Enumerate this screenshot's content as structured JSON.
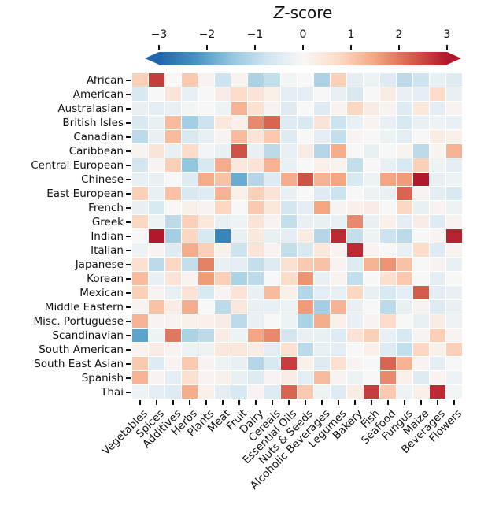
{
  "title": {
    "italic_part": "Z",
    "rest_part": "-score"
  },
  "colorbar": {
    "tick_labels": [
      "−3",
      "−2",
      "−1",
      "0",
      "1",
      "2",
      "3"
    ],
    "tick_values": [
      -3,
      -2,
      -1,
      0,
      1,
      2,
      3
    ],
    "min": -3,
    "max": 3,
    "left_arrow_color": "#2166ac",
    "right_arrow_color": "#b2182b"
  },
  "chart_data": {
    "type": "heatmap",
    "title": "Z-score",
    "colormap": {
      "name": "RdBu_r",
      "stops": [
        {
          "t": -3.0,
          "c": "#2166ac"
        },
        {
          "t": -2.25,
          "c": "#4393c3"
        },
        {
          "t": -1.5,
          "c": "#92c5de"
        },
        {
          "t": -0.75,
          "c": "#d1e5f0"
        },
        {
          "t": 0.0,
          "c": "#f7f7f7"
        },
        {
          "t": 0.75,
          "c": "#fddbc7"
        },
        {
          "t": 1.5,
          "c": "#f4a582"
        },
        {
          "t": 2.25,
          "c": "#d6604d"
        },
        {
          "t": 3.0,
          "c": "#b2182b"
        }
      ]
    },
    "vlim": [
      -3,
      3
    ],
    "colorbar_ticks": [
      -3,
      -2,
      -1,
      0,
      1,
      2,
      3
    ],
    "rows": [
      "African",
      "American",
      "Australasian",
      "British Isles",
      "Canadian",
      "Caribbean",
      "Central European",
      "Chinese",
      "East European",
      "French",
      "Greek",
      "Indian",
      "Italian",
      "Japanese",
      "Korean",
      "Mexican",
      "Middle Eastern",
      "Misc. Portuguese",
      "Scandinavian",
      "South American",
      "South East Asian",
      "Spanish",
      "Thai"
    ],
    "columns": [
      "Vegetables",
      "Spices",
      "Additives",
      "Herbs",
      "Plants",
      "Meat",
      "Fruit",
      "Dairy",
      "Cereals",
      "Essential Oils",
      "Nuts & Seeds",
      "Alcoholic Beverages",
      "Legumes",
      "Bakery",
      "Fish",
      "Seafood",
      "Fungus",
      "Maize",
      "Beverages",
      "Flowers"
    ],
    "values": [
      [
        0.9,
        2.6,
        0.0,
        1.0,
        0.1,
        -0.8,
        0.1,
        -1.2,
        -0.9,
        -0.1,
        0.0,
        -1.2,
        0.9,
        -0.4,
        -0.2,
        -0.5,
        -1.0,
        -0.8,
        -0.3,
        -0.5
      ],
      [
        -0.6,
        0.0,
        0.5,
        -0.3,
        0.0,
        0.3,
        0.7,
        0.5,
        0.2,
        -0.4,
        -0.4,
        0.0,
        -0.3,
        -0.6,
        0.0,
        0.3,
        -0.3,
        -0.4,
        0.7,
        -0.3
      ],
      [
        -0.3,
        -0.4,
        -0.3,
        -0.1,
        0.0,
        -0.2,
        1.3,
        0.6,
        0.1,
        -0.5,
        0.0,
        -0.5,
        0.1,
        0.8,
        0.3,
        0.1,
        -0.5,
        0.4,
        -0.4,
        0.1
      ],
      [
        -0.6,
        -0.3,
        1.2,
        -1.3,
        -0.8,
        0.4,
        0.2,
        1.8,
        2.2,
        -0.5,
        -0.6,
        0.5,
        -0.8,
        -0.3,
        0.1,
        -0.3,
        -0.6,
        -0.3,
        -0.2,
        -0.3
      ],
      [
        -1.0,
        -0.3,
        1.2,
        -0.6,
        -0.3,
        0.1,
        1.2,
        0.5,
        1.0,
        -0.5,
        0.0,
        -0.4,
        -0.9,
        0.1,
        0.0,
        -0.2,
        -0.4,
        0.0,
        0.3,
        0.2
      ],
      [
        0.1,
        0.5,
        -0.3,
        0.7,
        -0.1,
        -0.3,
        2.4,
        -0.3,
        -1.0,
        -0.3,
        0.3,
        -1.1,
        1.4,
        0.0,
        -0.3,
        0.0,
        0.1,
        -1.0,
        0.1,
        1.3
      ],
      [
        -0.7,
        0.1,
        0.9,
        -1.5,
        -0.6,
        1.4,
        0.4,
        0.5,
        1.3,
        -0.3,
        0.0,
        0.2,
        0.1,
        -0.9,
        0.0,
        -0.3,
        -0.6,
        0.9,
        -0.2,
        -0.4
      ],
      [
        -0.3,
        -0.3,
        0.0,
        -0.5,
        1.4,
        1.1,
        -1.9,
        -1.1,
        -0.5,
        1.4,
        2.4,
        1.3,
        1.5,
        -0.6,
        -0.2,
        1.5,
        1.6,
        3.0,
        -0.3,
        -0.2
      ],
      [
        0.9,
        -0.3,
        1.1,
        -0.6,
        -0.5,
        1.3,
        0.2,
        0.9,
        0.5,
        -0.3,
        0.0,
        -0.5,
        -0.8,
        0.0,
        -0.2,
        -0.3,
        2.2,
        0.1,
        -0.4,
        -0.6
      ],
      [
        -0.3,
        -0.6,
        0.0,
        0.2,
        0.1,
        0.8,
        0.0,
        1.0,
        0.4,
        -0.7,
        -0.4,
        1.5,
        0.1,
        0.2,
        0.3,
        0.0,
        0.8,
        -0.3,
        0.1,
        -0.2
      ],
      [
        0.8,
        -0.2,
        -1.0,
        0.9,
        0.4,
        -0.3,
        -0.2,
        0.5,
        0.1,
        -0.9,
        -0.3,
        -0.3,
        -0.3,
        1.8,
        -0.3,
        0.2,
        -0.4,
        0.3,
        -0.5,
        0.1
      ],
      [
        0.0,
        3.0,
        -1.3,
        0.8,
        -0.6,
        -2.5,
        -0.3,
        0.4,
        -0.3,
        -0.4,
        0.3,
        -1.1,
        2.8,
        -0.9,
        -0.2,
        -0.8,
        -1.0,
        0.0,
        0.1,
        2.9
      ],
      [
        -0.2,
        0.1,
        -0.5,
        1.4,
        0.9,
        0.2,
        -0.8,
        0.5,
        0.1,
        -0.9,
        -0.6,
        0.4,
        0.1,
        2.8,
        0.1,
        0.0,
        -0.3,
        0.7,
        -0.5,
        0.1
      ],
      [
        0.6,
        -1.0,
        0.8,
        -0.9,
        1.9,
        -0.3,
        -0.4,
        -0.9,
        -0.5,
        0.6,
        1.0,
        1.1,
        0.1,
        -0.5,
        1.3,
        1.7,
        1.1,
        0.0,
        0.1,
        -0.3
      ],
      [
        1.2,
        -0.3,
        0.5,
        0.1,
        1.6,
        0.9,
        -1.2,
        -1.0,
        0.0,
        0.7,
        1.7,
        -0.3,
        0.1,
        -0.9,
        0.0,
        0.6,
        1.0,
        0.0,
        -0.4,
        0.0
      ],
      [
        0.9,
        0.1,
        -0.3,
        0.5,
        -0.6,
        0.1,
        0.5,
        -0.3,
        1.2,
        0.2,
        -1.1,
        -0.4,
        -0.3,
        0.8,
        -0.3,
        -0.6,
        -0.4,
        2.3,
        -0.4,
        -0.3
      ],
      [
        0.1,
        1.1,
        0.3,
        1.4,
        0.0,
        -1.0,
        0.4,
        -0.3,
        -0.3,
        -0.2,
        1.6,
        -1.3,
        1.3,
        -0.3,
        0.0,
        -1.0,
        -0.3,
        0.1,
        -0.5,
        -0.3
      ],
      [
        1.3,
        0.1,
        0.1,
        0.2,
        0.2,
        0.3,
        -1.0,
        -0.3,
        0.0,
        -0.2,
        -1.2,
        1.4,
        0.2,
        -0.3,
        0.1,
        0.7,
        0.0,
        -0.3,
        0.3,
        -0.2
      ],
      [
        -2.0,
        -0.2,
        2.0,
        -1.2,
        -1.0,
        0.3,
        -0.2,
        1.5,
        1.8,
        -0.7,
        -0.3,
        -0.3,
        -0.5,
        0.5,
        0.9,
        -0.3,
        -0.6,
        0.1,
        0.9,
        0.1
      ],
      [
        0.1,
        0.3,
        0.1,
        -0.2,
        -0.2,
        0.4,
        0.4,
        0.3,
        -0.4,
        0.6,
        -1.0,
        -0.3,
        -0.4,
        0.0,
        0.2,
        -0.5,
        -0.9,
        0.8,
        0.2,
        0.9
      ],
      [
        1.0,
        -0.5,
        0.1,
        1.0,
        0.1,
        -0.2,
        -0.3,
        -1.1,
        -0.6,
        2.6,
        0.2,
        -0.5,
        0.6,
        0.1,
        0.0,
        2.2,
        1.3,
        0.1,
        -0.4,
        0.0
      ],
      [
        1.3,
        0.1,
        -0.4,
        0.6,
        0.1,
        0.2,
        -0.3,
        -0.5,
        0.1,
        0.3,
        -0.4,
        1.2,
        0.1,
        -0.2,
        0.0,
        1.8,
        0.2,
        -0.5,
        0.1,
        -0.2
      ],
      [
        -0.2,
        -0.4,
        -0.5,
        1.4,
        0.2,
        -0.4,
        -0.6,
        0.1,
        -0.5,
        2.2,
        1.0,
        -0.2,
        -0.5,
        0.3,
        2.6,
        1.0,
        -0.2,
        0.2,
        2.8,
        -0.1
      ]
    ]
  }
}
